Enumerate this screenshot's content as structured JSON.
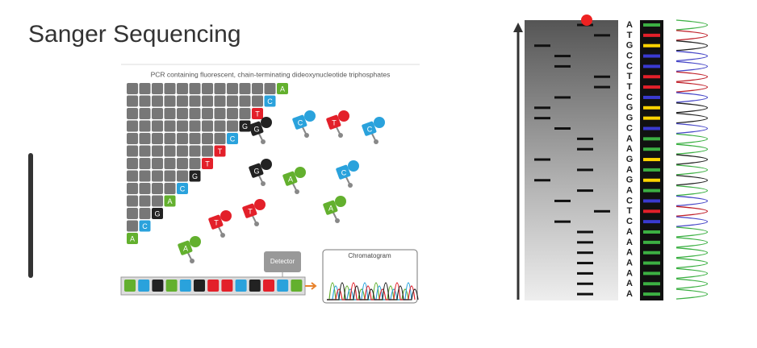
{
  "title": "Sanger Sequencing",
  "figure": {
    "caption": "PCR containing fluorescent, chain-terminating dideoxynucleotide triphosphates",
    "staircase": [
      "A",
      "C",
      "T",
      "G",
      "C",
      "T",
      "T",
      "G",
      "C",
      "A",
      "G",
      "C",
      "A"
    ],
    "free_nucleotides": [
      "C",
      "T",
      "C",
      "G",
      "G",
      "A",
      "C",
      "T",
      "T",
      "A",
      "A"
    ],
    "detector": "Detector",
    "chromatogram": "Chromatogram"
  },
  "gel": {
    "sequence": [
      "A",
      "T",
      "G",
      "C",
      "C",
      "T",
      "T",
      "C",
      "G",
      "G",
      "C",
      "A",
      "A",
      "G",
      "A",
      "G",
      "A",
      "C",
      "T",
      "C",
      "A",
      "A",
      "A",
      "A",
      "A",
      "A",
      "A"
    ]
  }
}
